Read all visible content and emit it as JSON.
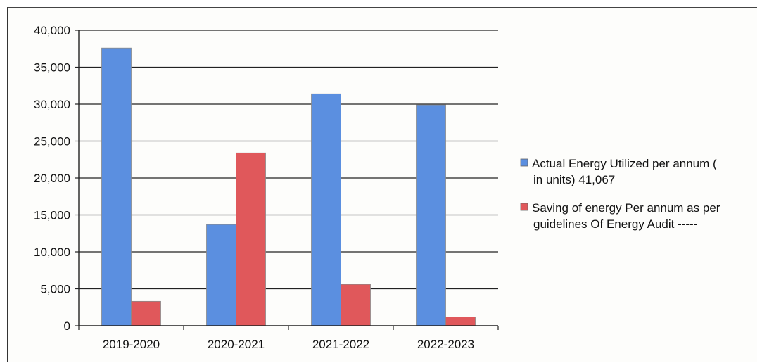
{
  "chart_data": {
    "type": "bar",
    "categories": [
      "2019-2020",
      "2020-2021",
      "2021-2022",
      "2022-2023"
    ],
    "series": [
      {
        "name": "Actual Energy Utilized per annum ( in units) 41,067",
        "legend_lines": [
          "Actual Energy Utilized per annum (",
          "in units) 41,067"
        ],
        "color": "#5b8fe0",
        "values": [
          37600,
          13700,
          31400,
          29900
        ]
      },
      {
        "name": "Saving of energy  Per annum as per guidelines Of Energy Audit -----",
        "legend_lines": [
          "Saving of energy  Per annum as per",
          "guidelines Of Energy Audit -----"
        ],
        "color": "#e0585b",
        "values": [
          3300,
          23400,
          5600,
          1200
        ]
      }
    ],
    "yticks": [
      "0",
      "5,000",
      "10,000",
      "15,000",
      "20,000",
      "25,000",
      "30,000",
      "35,000",
      "40,000"
    ],
    "ylim": [
      0,
      40000
    ],
    "grid": true,
    "legend_position": "right"
  }
}
